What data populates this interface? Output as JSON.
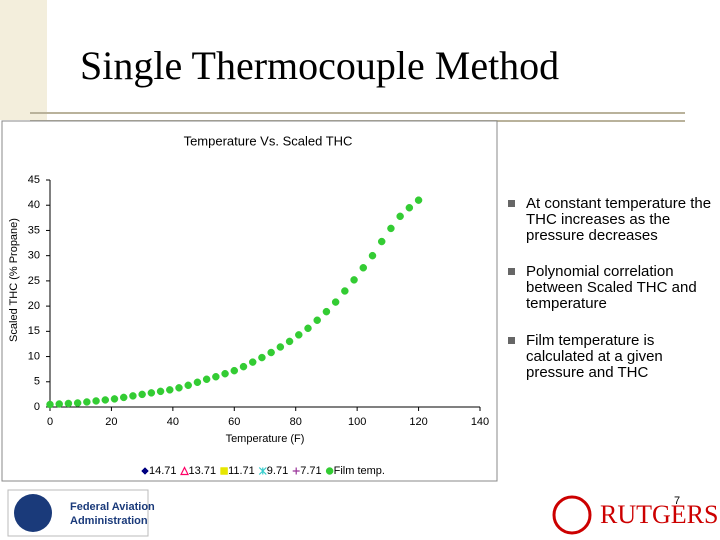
{
  "slide": {
    "title": "Single Thermocouple Method",
    "bullets": [
      "At constant temperature the THC increases as the pressure decreases",
      "Polynomial correlation between Scaled THC and temperature",
      "Film temperature is calculated at a given pressure and THC"
    ],
    "logo_left": [
      "Federal Aviation",
      "Administration"
    ],
    "logo_right": "RUTGERS",
    "page_number": "7"
  },
  "chart_data": {
    "type": "scatter",
    "title": "Temperature Vs. Scaled THC",
    "x_label": "Temperature (F)",
    "y_label": "Scaled THC (% Propane)",
    "xlim": [
      0,
      140
    ],
    "xticks": [
      0,
      20,
      40,
      60,
      80,
      100,
      120,
      140
    ],
    "ylim": [
      0,
      45
    ],
    "yticks": [
      0,
      5,
      10,
      15,
      20,
      25,
      30,
      35,
      40,
      45
    ],
    "series": [
      {
        "name": "14.71",
        "color": "#000080",
        "marker": "diamond",
        "x": [],
        "values": []
      },
      {
        "name": "13.71",
        "color": "#ff0066",
        "marker": "triangle",
        "x": [],
        "values": []
      },
      {
        "name": "11.71",
        "color": "#e6e600",
        "marker": "square",
        "x": [],
        "values": []
      },
      {
        "name": "9.71",
        "color": "#33cccc",
        "marker": "star",
        "x": [],
        "values": []
      },
      {
        "name": "7.71",
        "color": "#993399",
        "marker": "plus",
        "x": [],
        "values": []
      },
      {
        "name": "Film temp.",
        "color": "#33cc33",
        "marker": "circle",
        "x": [
          0,
          3,
          6,
          9,
          12,
          15,
          18,
          21,
          24,
          27,
          30,
          33,
          36,
          39,
          42,
          45,
          48,
          51,
          54,
          57,
          60,
          63,
          66,
          69,
          72,
          75,
          78,
          81,
          84,
          87,
          90,
          93,
          96,
          99,
          102,
          105,
          108,
          111,
          114,
          117,
          120
        ],
        "values": [
          0.5,
          0.6,
          0.7,
          0.8,
          1.0,
          1.2,
          1.4,
          1.6,
          1.9,
          2.2,
          2.5,
          2.8,
          3.1,
          3.4,
          3.8,
          4.3,
          4.9,
          5.5,
          6.0,
          6.6,
          7.2,
          8.0,
          8.9,
          9.8,
          10.8,
          11.9,
          13.0,
          14.3,
          15.6,
          17.2,
          18.9,
          20.8,
          23.0,
          25.2,
          27.6,
          30.0,
          32.8,
          35.4,
          37.8,
          39.5,
          41
        ]
      }
    ]
  }
}
